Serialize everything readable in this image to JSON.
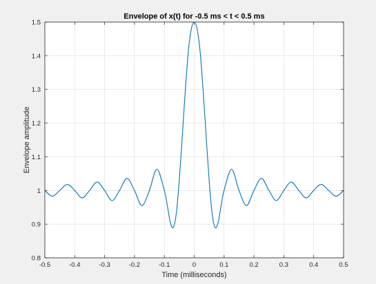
{
  "chart_data": {
    "type": "line",
    "title": "Envelope of x(t) for -0.5 ms < t < 0.5 ms",
    "xlabel": "Time (milliseconds)",
    "ylabel": "Envelope amplitude",
    "xlim": [
      -0.5,
      0.5
    ],
    "ylim": [
      0.8,
      1.5
    ],
    "xticks": [
      -0.5,
      -0.4,
      -0.3,
      -0.2,
      -0.1,
      0,
      0.1,
      0.2,
      0.3,
      0.4,
      0.5
    ],
    "xtick_labels": [
      "-0.5",
      "-0.4",
      "-0.3",
      "-0.2",
      "-0.1",
      "0",
      "0.1",
      "0.2",
      "0.3",
      "0.4",
      "0.5"
    ],
    "yticks": [
      0.8,
      0.9,
      1.0,
      1.1,
      1.2,
      1.3,
      1.4,
      1.5
    ],
    "ytick_labels": [
      "0.8",
      "0.9",
      "1",
      "1.1",
      "1.2",
      "1.3",
      "1.4",
      "1.5"
    ],
    "grid": true,
    "legend": "none",
    "series": [
      {
        "color": "#0072bd",
        "x": [
          -0.5,
          -0.475,
          -0.45,
          -0.425,
          -0.4,
          -0.375,
          -0.35,
          -0.325,
          -0.3,
          -0.275,
          -0.25,
          -0.225,
          -0.2,
          -0.175,
          -0.15,
          -0.125,
          -0.1,
          -0.09,
          -0.08,
          -0.07,
          -0.06,
          -0.05,
          -0.04,
          -0.03,
          -0.02,
          -0.01,
          0,
          0.01,
          0.02,
          0.03,
          0.04,
          0.05,
          0.06,
          0.07,
          0.08,
          0.09,
          0.1,
          0.125,
          0.15,
          0.175,
          0.2,
          0.225,
          0.25,
          0.275,
          0.3,
          0.325,
          0.35,
          0.375,
          0.4,
          0.425,
          0.45,
          0.475,
          0.5
        ],
        "y": [
          1.0,
          0.983,
          1.0,
          1.018,
          1.0,
          0.978,
          1.0,
          1.025,
          1.0,
          0.97,
          1.0,
          1.036,
          1.0,
          0.955,
          1.0,
          1.063,
          1.0,
          0.955,
          0.905,
          0.89,
          0.932,
          1.03,
          1.16,
          1.295,
          1.41,
          1.478,
          1.5,
          1.478,
          1.41,
          1.295,
          1.16,
          1.03,
          0.932,
          0.89,
          0.905,
          0.955,
          1.0,
          1.063,
          1.0,
          0.955,
          1.0,
          1.036,
          1.0,
          0.97,
          1.0,
          1.025,
          1.0,
          0.978,
          1.0,
          1.018,
          1.0,
          0.983,
          1.0
        ]
      }
    ]
  }
}
